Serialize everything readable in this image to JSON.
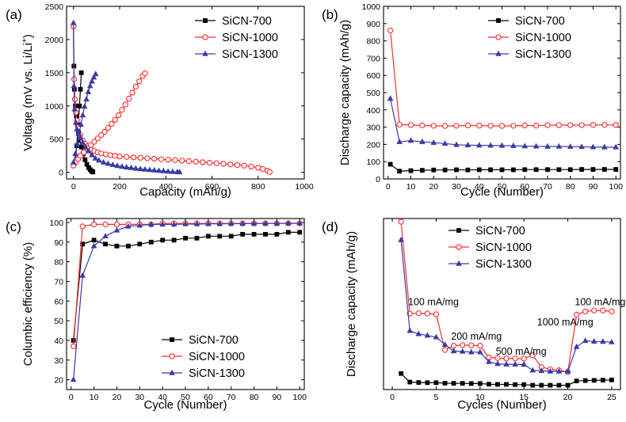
{
  "colors": {
    "s700": "#000000",
    "s1000": "#ff2a2a",
    "s1300": "#3a3aa8"
  },
  "legend_names": [
    "SiCN-700",
    "SiCN-1000",
    "SiCN-1300"
  ],
  "chart_data": [
    {
      "panel": "(a)",
      "type": "line",
      "xlabel": "Capacity (mAh/g)",
      "ylabel": "Voltage (mV vs. Li/Li",
      "ylabel_sup": "+",
      "ylabel_end": ")",
      "xlim": [
        -30,
        1000
      ],
      "ylim": [
        -100,
        2500
      ],
      "xticks": [
        0,
        200,
        400,
        600,
        800,
        1000
      ],
      "yticks": [
        0,
        500,
        1000,
        1500,
        2000,
        2500
      ],
      "legend_placement": "top-right",
      "series": [
        {
          "name": "SiCN-700",
          "marker": "square",
          "color": "#000000",
          "curves": [
            {
              "x": [
                0,
                2,
                4,
                8,
                12,
                17,
                22,
                28,
                35,
                42,
                50,
                58,
                66,
                72,
                78,
                82,
                84
              ],
              "y": [
                2200,
                1600,
                1250,
                1000,
                850,
                720,
                600,
                480,
                380,
                280,
                190,
                120,
                70,
                40,
                20,
                10,
                5
              ]
            },
            {
              "x": [
                8,
                14,
                20,
                26,
                30,
                34
              ],
              "y": [
                150,
                400,
                700,
                1000,
                1250,
                1500
              ]
            }
          ]
        },
        {
          "name": "SiCN-1000",
          "marker": "circle",
          "color": "#ff2a2a",
          "curves": [
            {
              "x": [
                0,
                3,
                6,
                10,
                15,
                20,
                30,
                40,
                50,
                60,
                75,
                90,
                105,
                120,
                140,
                160,
                180,
                200,
                230,
                260,
                290,
                320,
                350,
                380,
                410,
                440,
                470,
                500,
                530,
                560,
                590,
                620,
                650,
                680,
                710,
                740,
                770,
                800,
                820,
                840,
                850
              ],
              "y": [
                2200,
                1400,
                1100,
                900,
                780,
                680,
                560,
                480,
                430,
                390,
                350,
                320,
                300,
                285,
                270,
                258,
                248,
                240,
                232,
                225,
                218,
                211,
                204,
                197,
                190,
                183,
                176,
                168,
                160,
                152,
                144,
                136,
                128,
                119,
                110,
                100,
                88,
                70,
                50,
                25,
                5
              ]
            },
            {
              "x": [
                0,
                10,
                20,
                30,
                45,
                60,
                75,
                90,
                105,
                120,
                135,
                150,
                165,
                180,
                195,
                210,
                225,
                240,
                255,
                270,
                285,
                300,
                310
              ],
              "y": [
                100,
                150,
                200,
                250,
                300,
                360,
                410,
                460,
                510,
                560,
                610,
                670,
                730,
                790,
                860,
                940,
                1020,
                1110,
                1200,
                1290,
                1370,
                1450,
                1490
              ]
            }
          ]
        },
        {
          "name": "SiCN-1300",
          "marker": "triangle",
          "color": "#3a3aa8",
          "curves": [
            {
              "x": [
                0,
                2,
                5,
                10,
                15,
                22,
                30,
                40,
                52,
                65,
                80,
                95,
                110,
                130,
                150,
                170,
                190,
                210,
                230,
                250,
                270,
                290,
                310,
                330,
                350,
                370,
                390,
                410,
                430,
                450,
                460
              ],
              "y": [
                2250,
                1300,
                950,
                750,
                650,
                580,
                520,
                450,
                380,
                320,
                260,
                210,
                180,
                150,
                130,
                112,
                98,
                86,
                76,
                67,
                58,
                50,
                43,
                36,
                30,
                24,
                18,
                12,
                8,
                5,
                3
              ]
            },
            {
              "x": [
                0,
                8,
                16,
                24,
                32,
                40,
                48,
                56,
                64,
                72,
                80,
                88,
                96
              ],
              "y": [
                150,
                280,
                430,
                580,
                720,
                860,
                990,
                1100,
                1210,
                1300,
                1370,
                1430,
                1480
              ]
            }
          ]
        }
      ]
    },
    {
      "panel": "(b)",
      "type": "line",
      "xlabel": "Cycle (Number)",
      "ylabel": "Discharge capacity (mAh/g)",
      "xlim": [
        -2,
        102
      ],
      "ylim": [
        0,
        1000
      ],
      "xticks": [
        0,
        10,
        20,
        30,
        40,
        50,
        60,
        70,
        80,
        90,
        100
      ],
      "yticks": [
        0,
        100,
        200,
        300,
        400,
        500,
        600,
        700,
        800,
        900,
        1000
      ],
      "legend_placement": "top-right",
      "series": [
        {
          "name": "SiCN-700",
          "marker": "square",
          "color": "#000000",
          "x": [
            1,
            5,
            10,
            15,
            20,
            25,
            30,
            35,
            40,
            45,
            50,
            55,
            60,
            65,
            70,
            75,
            80,
            85,
            90,
            95,
            100
          ],
          "y": [
            85,
            45,
            48,
            50,
            52,
            52,
            53,
            52,
            53,
            53,
            53,
            53,
            54,
            54,
            54,
            54,
            54,
            55,
            55,
            55,
            55
          ]
        },
        {
          "name": "SiCN-1000",
          "marker": "circle",
          "color": "#ff2a2a",
          "x": [
            1,
            5,
            10,
            15,
            20,
            25,
            30,
            35,
            40,
            45,
            50,
            55,
            60,
            65,
            70,
            75,
            80,
            85,
            90,
            95,
            100
          ],
          "y": [
            860,
            315,
            312,
            310,
            308,
            307,
            308,
            310,
            309,
            308,
            307,
            308,
            310,
            309,
            311,
            312,
            312,
            312,
            313,
            313,
            313
          ]
        },
        {
          "name": "SiCN-1300",
          "marker": "triangle",
          "color": "#3a3aa8",
          "x": [
            1,
            5,
            10,
            15,
            20,
            25,
            30,
            35,
            40,
            45,
            50,
            55,
            60,
            65,
            70,
            75,
            80,
            85,
            90,
            95,
            100
          ],
          "y": [
            465,
            215,
            222,
            215,
            210,
            205,
            198,
            196,
            195,
            194,
            193,
            192,
            190,
            189,
            188,
            188,
            187,
            186,
            185,
            184,
            184
          ]
        }
      ]
    },
    {
      "panel": "(c)",
      "type": "line",
      "xlabel": "Cycle (Number)",
      "ylabel": "Columbic efficiency (%)",
      "xlim": [
        -2,
        102
      ],
      "ylim": [
        15,
        102
      ],
      "xticks": [
        0,
        10,
        20,
        30,
        40,
        50,
        60,
        70,
        80,
        90,
        100
      ],
      "yticks": [
        20,
        30,
        40,
        50,
        60,
        70,
        80,
        90,
        100
      ],
      "legend_placement": "bottom-right",
      "series": [
        {
          "name": "SiCN-700",
          "marker": "square",
          "color": "#000000",
          "x": [
            1,
            5,
            10,
            15,
            20,
            25,
            30,
            35,
            40,
            45,
            50,
            55,
            60,
            65,
            70,
            75,
            80,
            85,
            90,
            95,
            100
          ],
          "y": [
            40,
            89,
            91,
            89,
            88,
            88,
            89,
            90,
            91,
            91,
            92,
            92,
            93,
            93,
            93,
            94,
            94,
            94,
            94,
            95,
            95
          ]
        },
        {
          "name": "SiCN-1000",
          "marker": "circle",
          "color": "#ff2a2a",
          "x": [
            1,
            5,
            10,
            15,
            20,
            25,
            30,
            35,
            40,
            45,
            50,
            55,
            60,
            65,
            70,
            75,
            80,
            85,
            90,
            95,
            100
          ],
          "y": [
            37,
            98,
            99,
            99,
            99,
            99,
            99,
            99,
            99.5,
            99.5,
            99.5,
            99.5,
            99.5,
            99.5,
            99.5,
            99.5,
            99.5,
            99.5,
            99.5,
            99.5,
            99.5
          ]
        },
        {
          "name": "SiCN-1300",
          "marker": "triangle",
          "color": "#3a3aa8",
          "x": [
            1,
            5,
            10,
            15,
            20,
            25,
            30,
            35,
            40,
            45,
            50,
            55,
            60,
            65,
            70,
            75,
            80,
            85,
            90,
            95,
            100
          ],
          "y": [
            20,
            73,
            88,
            93,
            96,
            98,
            98.5,
            99,
            99,
            99,
            99.2,
            99.2,
            99.3,
            99.3,
            99.4,
            99.4,
            99.5,
            99.5,
            99.5,
            99.6,
            99.6
          ]
        }
      ]
    },
    {
      "panel": "(d)",
      "type": "line",
      "xlabel": "Cycles (Number)",
      "ylabel": "Discharge capacity (mAh/g)",
      "xlim": [
        -1,
        26
      ],
      "ylim": [
        0,
        800
      ],
      "xticks": [
        0,
        5,
        10,
        15,
        20,
        25
      ],
      "yticks": [],
      "legend_placement": "top-right",
      "annotations": [
        {
          "text": "100 mA/mg",
          "x": 1.8,
          "y": 395
        },
        {
          "text": "200 mA/mg",
          "x": 6.7,
          "y": 233
        },
        {
          "text": "500 mA/mg",
          "x": 11.8,
          "y": 163
        },
        {
          "text": "1000 mA/mg",
          "x": 16.5,
          "y": 300
        },
        {
          "text": "100 mA/mg",
          "x": 20.8,
          "y": 395
        }
      ],
      "series": [
        {
          "name": "SiCN-700",
          "marker": "square",
          "color": "#000000",
          "x": [
            1,
            2,
            3,
            4,
            5,
            6,
            7,
            8,
            9,
            10,
            11,
            12,
            13,
            14,
            15,
            16,
            17,
            18,
            19,
            20,
            21,
            22,
            23,
            24,
            25
          ],
          "y": [
            75,
            35,
            33,
            32,
            32,
            30,
            29,
            29,
            28,
            28,
            25,
            24,
            24,
            23,
            23,
            20,
            20,
            20,
            20,
            20,
            40,
            42,
            43,
            44,
            45
          ]
        },
        {
          "name": "SiCN-1000",
          "marker": "circle",
          "color": "#ff2a2a",
          "x": [
            1,
            2,
            3,
            4,
            5,
            6,
            7,
            8,
            9,
            10,
            11,
            12,
            13,
            14,
            15,
            16,
            17,
            18,
            19,
            20,
            21,
            22,
            23,
            24,
            25
          ],
          "y": [
            785,
            355,
            357,
            355,
            352,
            185,
            205,
            208,
            207,
            205,
            150,
            147,
            145,
            145,
            145,
            160,
            105,
            95,
            90,
            82,
            350,
            365,
            370,
            370,
            365
          ]
        },
        {
          "name": "SiCN-1300",
          "marker": "triangle",
          "color": "#3a3aa8",
          "x": [
            1,
            2,
            3,
            4,
            5,
            6,
            7,
            8,
            9,
            10,
            11,
            12,
            13,
            14,
            15,
            16,
            17,
            18,
            19,
            20,
            21,
            22,
            23,
            24,
            25
          ],
          "y": [
            700,
            275,
            260,
            253,
            245,
            210,
            180,
            178,
            175,
            175,
            130,
            120,
            118,
            118,
            117,
            90,
            88,
            85,
            85,
            85,
            200,
            228,
            225,
            224,
            222
          ]
        }
      ]
    }
  ]
}
